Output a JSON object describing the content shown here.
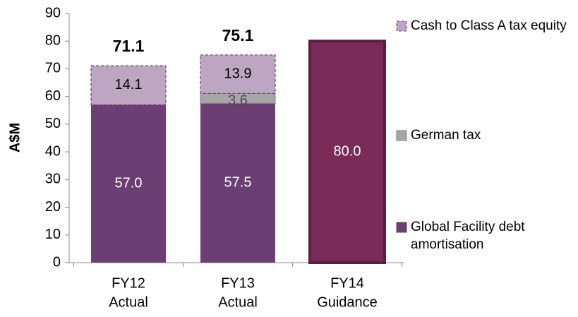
{
  "chart_data": {
    "type": "stacked_bar",
    "ylabel": "A$M",
    "categories": [
      [
        "FY12",
        "Actual"
      ],
      [
        "FY13",
        "Actual"
      ],
      [
        "FY14",
        "Guidance"
      ]
    ],
    "series": [
      {
        "name": "Global Facility debt amortisation",
        "color": "#6b3f73",
        "point_colors": [
          "#6b3f73",
          "#6b3f73",
          "#7a2b58"
        ],
        "values": [
          57.0,
          57.5,
          80.0
        ],
        "value_labels": [
          "57.0",
          "57.5",
          "80.0"
        ]
      },
      {
        "name": "German tax",
        "color": "#a6a6a6",
        "values": [
          null,
          3.6,
          null
        ]
      },
      {
        "name": "Cash to Class A tax equity",
        "color": "#bca6c2",
        "values": [
          14.1,
          13.9,
          null
        ]
      }
    ],
    "totals": [
      71.1,
      75.1,
      null
    ],
    "ylim": [
      0,
      90
    ],
    "yticks": [
      0,
      10,
      20,
      30,
      40,
      50,
      60,
      70,
      80,
      90
    ],
    "grid": false,
    "legend": "right"
  }
}
